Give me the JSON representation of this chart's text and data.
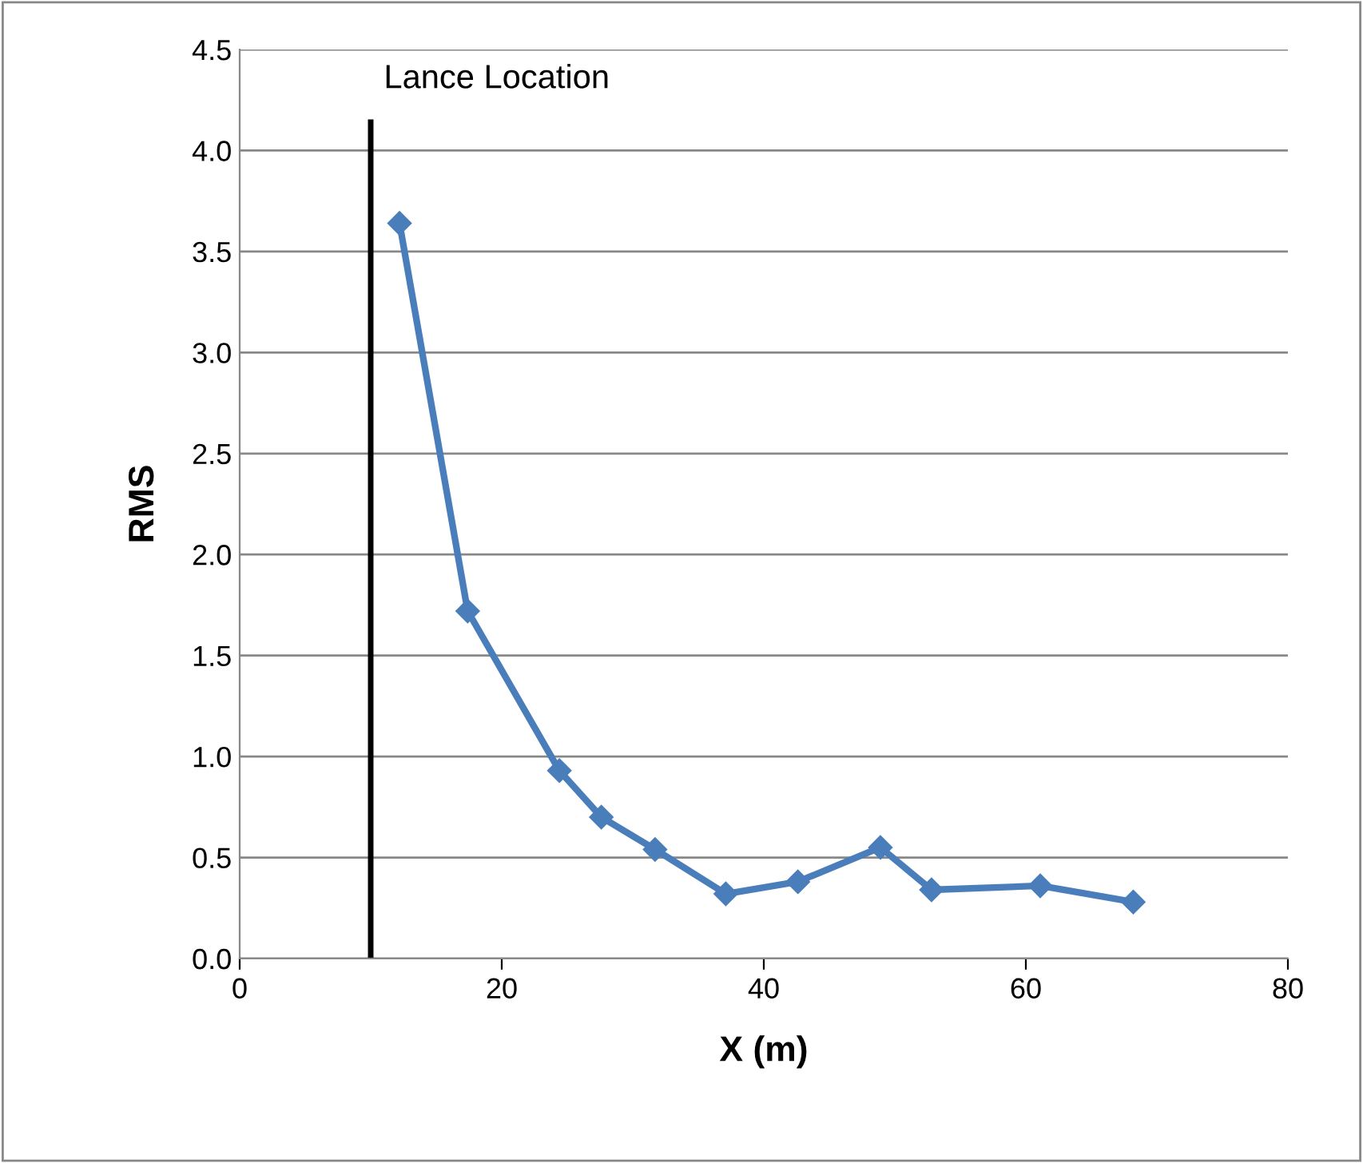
{
  "chart_data": {
    "type": "line",
    "xlabel": "X (m)",
    "ylabel": "RMS",
    "x": [
      12.2,
      17.4,
      24.4,
      27.6,
      31.7,
      37.1,
      42.6,
      48.9,
      52.8,
      61.1,
      68.2
    ],
    "series": [
      {
        "color": "#4a7ebb",
        "values": [
          3.64,
          1.72,
          0.93,
          0.7,
          0.54,
          0.32,
          0.38,
          0.55,
          0.34,
          0.36,
          0.28
        ]
      }
    ],
    "xlim": [
      0,
      80
    ],
    "xticks": [
      0,
      20,
      40,
      60,
      80
    ],
    "ylim": [
      0,
      4.5
    ],
    "yticks": [
      {
        "value": 0,
        "label": "0.0"
      },
      {
        "value": 0.5,
        "label": "0.5"
      },
      {
        "value": 1,
        "label": "1.0"
      },
      {
        "value": 1.5,
        "label": "1.5"
      },
      {
        "value": 2,
        "label": "2.0"
      },
      {
        "value": 2.5,
        "label": "2.5"
      },
      {
        "value": 3,
        "label": "3.0"
      },
      {
        "value": 3.5,
        "label": "3.5"
      },
      {
        "value": 4,
        "label": "4.0"
      },
      {
        "value": 4.5,
        "label": "4.5"
      }
    ],
    "ref_lines": [
      {
        "axis": "x",
        "value": 10,
        "label": "Lance Location",
        "color": "#000000"
      }
    ],
    "grid": "y",
    "marker": "diamond",
    "line_style": "solid",
    "legend": false
  }
}
